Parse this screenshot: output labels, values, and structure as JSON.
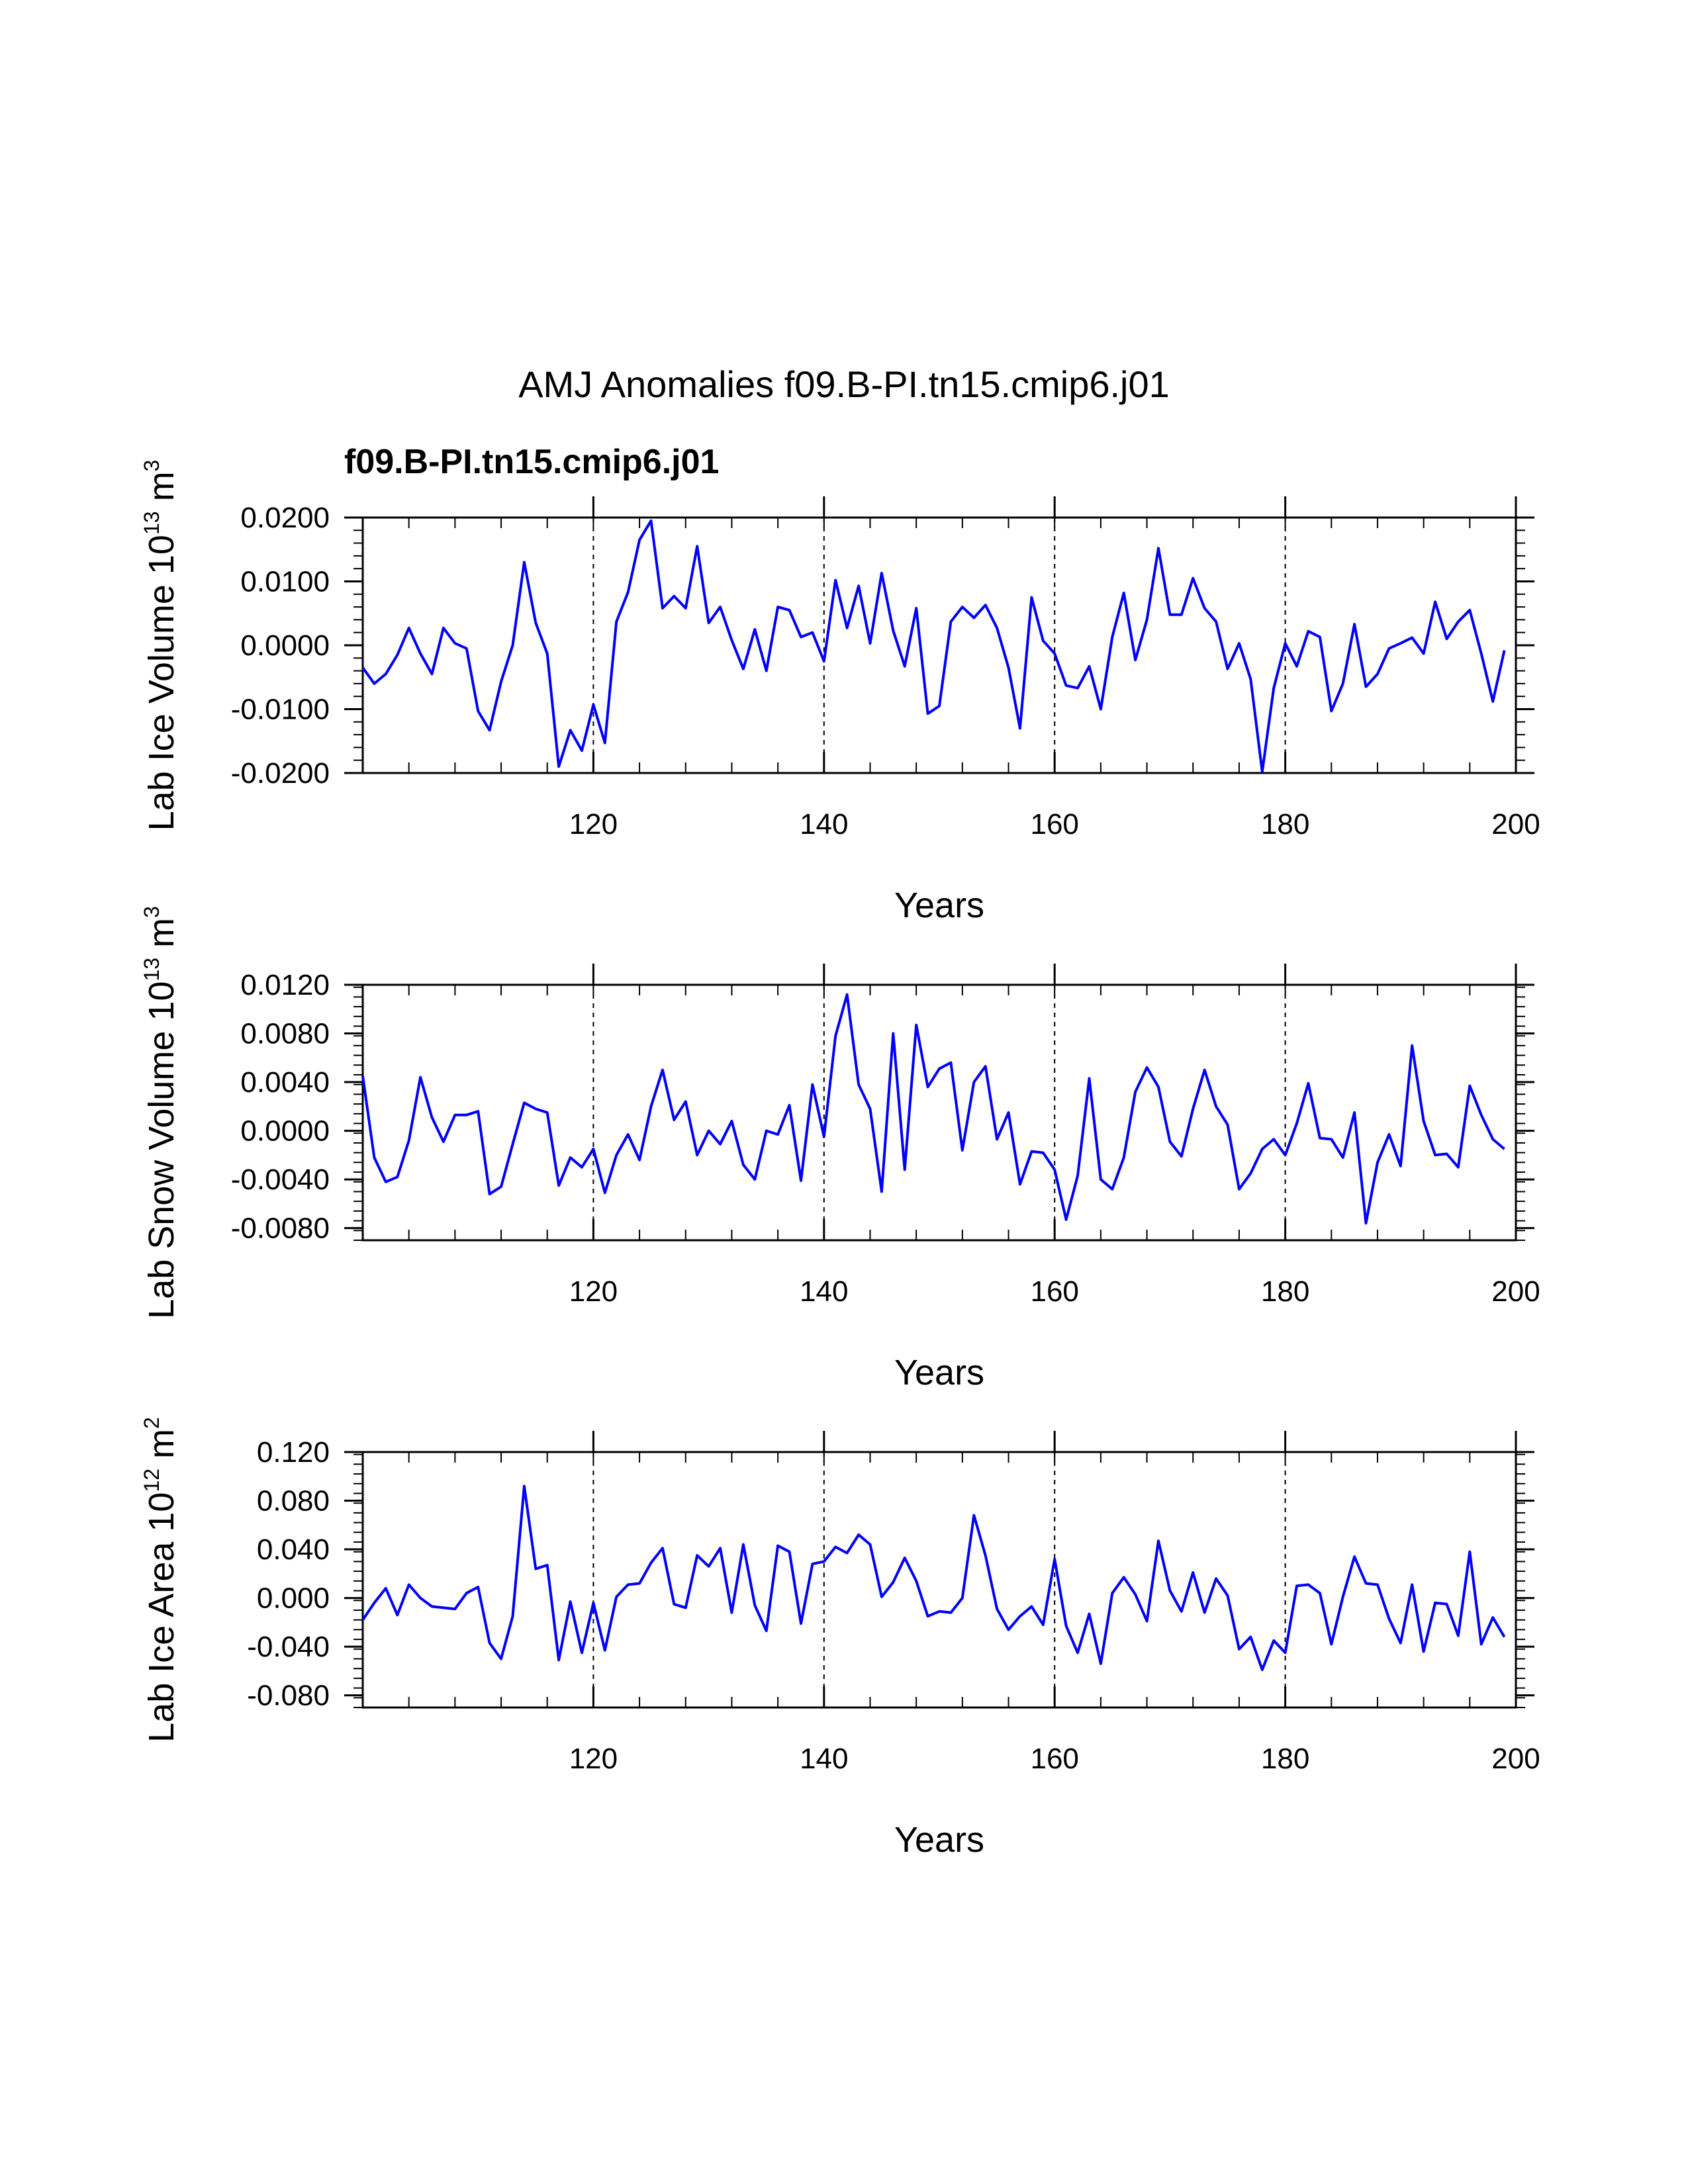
{
  "main_title": "AMJ Anomalies f09.B-PI.tn15.cmip6.j01",
  "subtitle": "f09.B-PI.tn15.cmip6.j01",
  "colors": {
    "series": "#0000ff",
    "axis": "#000000",
    "subtitle": "#0000ff"
  },
  "chart_data": [
    {
      "type": "line",
      "ylabel": {
        "text": "Lab Ice Volume 10",
        "exp": "13",
        "unit": " m",
        "unit_exp": "3"
      },
      "xlabel": "Years",
      "xlim": [
        100,
        200
      ],
      "ylim": [
        -0.02,
        0.02
      ],
      "yticks": [
        -0.02,
        -0.01,
        0.0,
        0.01,
        0.02
      ],
      "ytick_labels": [
        "-0.0200",
        "-0.0100",
        "0.0000",
        "0.0100",
        "0.0200"
      ],
      "xticks": [
        120,
        140,
        160,
        180,
        200
      ],
      "xtick_labels": [
        "120",
        "140",
        "160",
        "180",
        "200"
      ],
      "gridlines_x": [
        120,
        140,
        160,
        180
      ],
      "x_start": 100,
      "values": [
        -0.0035,
        -0.006,
        -0.0045,
        -0.0015,
        0.0027,
        -0.0013,
        -0.0045,
        0.0027,
        0.0003,
        -0.0005,
        -0.0103,
        -0.0133,
        -0.0057,
        0.0,
        0.013,
        0.0035,
        -0.0013,
        -0.019,
        -0.0133,
        -0.0165,
        -0.0093,
        -0.0153,
        0.0037,
        0.0083,
        0.0165,
        0.0195,
        0.0058,
        0.0077,
        0.0058,
        0.0155,
        0.0035,
        0.006,
        0.0008,
        -0.0037,
        0.0025,
        -0.004,
        0.006,
        0.0055,
        0.0013,
        0.002,
        -0.0025,
        0.0102,
        0.0027,
        0.0093,
        0.0003,
        0.0113,
        0.0023,
        -0.0033,
        0.0058,
        -0.0107,
        -0.0095,
        0.0037,
        0.006,
        0.0043,
        0.0063,
        0.0027,
        -0.0035,
        -0.013,
        0.0075,
        0.0007,
        -0.0013,
        -0.0063,
        -0.0067,
        -0.0033,
        -0.01,
        0.0013,
        0.0082,
        -0.0023,
        0.004,
        0.0152,
        0.0048,
        0.0048,
        0.0105,
        0.0058,
        0.0037,
        -0.0037,
        0.0003,
        -0.0053,
        -0.0198,
        -0.0067,
        0.0003,
        -0.0033,
        0.0022,
        0.0013,
        -0.0103,
        -0.006,
        0.0033,
        -0.0065,
        -0.0045,
        -0.0005,
        0.0003,
        0.0012,
        -0.0013,
        0.0068,
        0.001,
        0.0037,
        0.0055,
        -0.0013,
        -0.0088,
        -0.0008
      ]
    },
    {
      "type": "line",
      "ylabel": {
        "text": "Lab Snow Volume 10",
        "exp": "13",
        "unit": " m",
        "unit_exp": "3"
      },
      "xlabel": "Years",
      "xlim": [
        100,
        200
      ],
      "ylim": [
        -0.009,
        0.012
      ],
      "yticks": [
        -0.008,
        -0.004,
        0.0,
        0.004,
        0.008,
        0.012
      ],
      "ytick_labels": [
        "-0.0080",
        "-0.0040",
        "0.0000",
        "0.0040",
        "0.0080",
        "0.0120"
      ],
      "xticks": [
        120,
        140,
        160,
        180,
        200
      ],
      "xtick_labels": [
        "120",
        "140",
        "160",
        "180",
        "200"
      ],
      "gridlines_x": [
        120,
        140,
        160,
        180
      ],
      "x_start": 100,
      "values": [
        0.0045,
        -0.0022,
        -0.0042,
        -0.0038,
        -0.0008,
        0.0044,
        0.0011,
        -0.0009,
        0.0013,
        0.0013,
        0.0016,
        -0.0052,
        -0.0046,
        -0.0011,
        0.0023,
        0.0018,
        0.0015,
        -0.0045,
        -0.0022,
        -0.003,
        -0.0015,
        -0.0051,
        -0.002,
        -0.0003,
        -0.0024,
        0.002,
        0.005,
        0.0009,
        0.0024,
        -0.002,
        0.0,
        -0.0011,
        0.0008,
        -0.0028,
        -0.004,
        0.0,
        -0.0003,
        0.0021,
        -0.0041,
        0.0038,
        -0.0005,
        0.0078,
        0.0112,
        0.0038,
        0.0018,
        -0.005,
        0.008,
        -0.0032,
        0.0087,
        0.0036,
        0.0051,
        0.0056,
        -0.0016,
        0.004,
        0.0053,
        -0.0007,
        0.0015,
        -0.0044,
        -0.0017,
        -0.0018,
        -0.0032,
        -0.0073,
        -0.0037,
        0.0043,
        -0.004,
        -0.0048,
        -0.0022,
        0.0032,
        0.0052,
        0.0036,
        -0.0009,
        -0.0021,
        0.0018,
        0.005,
        0.002,
        0.0005,
        -0.0048,
        -0.0035,
        -0.0015,
        -0.0007,
        -0.002,
        0.0006,
        0.0039,
        -0.0006,
        -0.0007,
        -0.0022,
        0.0015,
        -0.0076,
        -0.0026,
        -0.0003,
        -0.0029,
        0.007,
        0.0008,
        -0.002,
        -0.0019,
        -0.003,
        0.0037,
        0.0013,
        -0.0007,
        -0.0015
      ]
    },
    {
      "type": "line",
      "ylabel": {
        "text": "Lab Ice Area 10",
        "exp": "12",
        "unit": " m",
        "unit_exp": "2"
      },
      "xlabel": "Years",
      "xlim": [
        100,
        200
      ],
      "ylim": [
        -0.09,
        0.12
      ],
      "yticks": [
        -0.08,
        -0.04,
        0.0,
        0.04,
        0.08,
        0.12
      ],
      "ytick_labels": [
        "-0.080",
        "-0.040",
        "0.000",
        "0.040",
        "0.080",
        "0.120"
      ],
      "xticks": [
        120,
        140,
        160,
        180,
        200
      ],
      "xtick_labels": [
        "120",
        "140",
        "160",
        "180",
        "200"
      ],
      "gridlines_x": [
        120,
        140,
        160,
        180
      ],
      "x_start": 100,
      "values": [
        -0.018,
        -0.004,
        0.008,
        -0.014,
        0.011,
        0.0,
        -0.007,
        -0.008,
        -0.009,
        0.004,
        0.009,
        -0.037,
        -0.05,
        -0.015,
        0.092,
        0.024,
        0.027,
        -0.051,
        -0.003,
        -0.045,
        -0.004,
        -0.043,
        0.001,
        0.011,
        0.012,
        0.029,
        0.041,
        -0.005,
        -0.008,
        0.035,
        0.026,
        0.041,
        -0.012,
        0.044,
        -0.006,
        -0.027,
        0.043,
        0.038,
        -0.021,
        0.028,
        0.03,
        0.042,
        0.037,
        0.052,
        0.044,
        0.001,
        0.013,
        0.033,
        0.014,
        -0.015,
        -0.011,
        -0.012,
        0.0,
        0.068,
        0.035,
        -0.009,
        -0.026,
        -0.015,
        -0.007,
        -0.022,
        0.032,
        -0.023,
        -0.045,
        -0.013,
        -0.054,
        0.004,
        0.017,
        0.003,
        -0.019,
        0.047,
        0.006,
        -0.011,
        0.021,
        -0.012,
        0.016,
        0.002,
        -0.042,
        -0.032,
        -0.059,
        -0.035,
        -0.045,
        0.01,
        0.011,
        0.004,
        -0.038,
        0.001,
        0.034,
        0.012,
        0.011,
        -0.017,
        -0.037,
        0.011,
        -0.044,
        -0.004,
        -0.005,
        -0.031,
        0.038,
        -0.038,
        -0.016,
        -0.032
      ]
    }
  ]
}
